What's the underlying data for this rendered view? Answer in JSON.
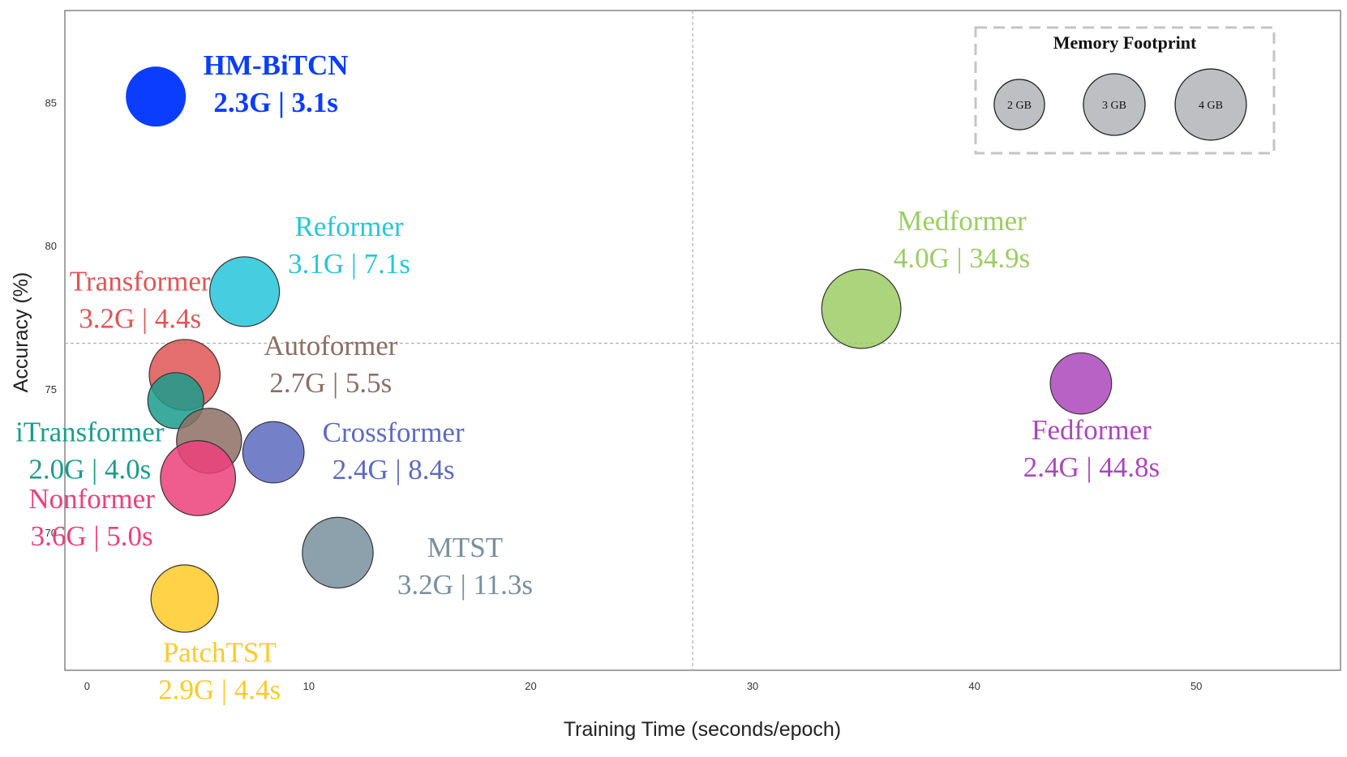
{
  "chart_data": {
    "type": "scatter",
    "title": "",
    "xlabel": "Training Time (seconds/epoch)",
    "ylabel": "Accuracy (%)",
    "xlim": [
      -1,
      56.5
    ],
    "ylim": [
      65.2,
      88.2
    ],
    "x_ticks": [
      "0",
      "10",
      "20",
      "30",
      "40",
      "50"
    ],
    "y_ticks": [
      "70",
      "75",
      "80",
      "85"
    ],
    "grid": false,
    "reference_lines": {
      "x": 27.3,
      "y": 76.6
    },
    "size_encoding": "Memory Footprint",
    "points": [
      {
        "name": "HM-BiTCN",
        "x": 3.1,
        "y": 85.2,
        "memory_gb": 2.3,
        "detail": "2.3G | 3.1s",
        "color": "#0a3dff",
        "highlight": true
      },
      {
        "name": "Reformer",
        "x": 7.1,
        "y": 78.4,
        "memory_gb": 3.1,
        "detail": "3.1G | 7.1s",
        "color": "#26c6da"
      },
      {
        "name": "Transformer",
        "x": 4.4,
        "y": 75.5,
        "memory_gb": 3.2,
        "detail": "3.2G | 4.4s",
        "color": "#e05555"
      },
      {
        "name": "iTransformer",
        "x": 4.0,
        "y": 74.6,
        "memory_gb": 2.0,
        "detail": "2.0G | 4.0s",
        "color": "#1a9c8c"
      },
      {
        "name": "Autoformer",
        "x": 5.5,
        "y": 73.2,
        "memory_gb": 2.7,
        "detail": "2.7G | 5.5s",
        "color": "#8d6e63"
      },
      {
        "name": "Nonformer",
        "x": 5.0,
        "y": 71.9,
        "memory_gb": 3.6,
        "detail": "3.6G | 5.0s",
        "color": "#ec407a"
      },
      {
        "name": "Crossformer",
        "x": 8.4,
        "y": 72.8,
        "memory_gb": 2.4,
        "detail": "2.4G | 8.4s",
        "color": "#5c6bc0"
      },
      {
        "name": "MTST",
        "x": 11.3,
        "y": 69.3,
        "memory_gb": 3.2,
        "detail": "3.2G | 11.3s",
        "color": "#78909c"
      },
      {
        "name": "PatchTST",
        "x": 4.4,
        "y": 67.7,
        "memory_gb": 2.9,
        "detail": "2.9G | 4.4s",
        "color": "#ffca28"
      },
      {
        "name": "Medformer",
        "x": 34.9,
        "y": 77.8,
        "memory_gb": 4.0,
        "detail": "4.0G | 34.9s",
        "color": "#9ccc65"
      },
      {
        "name": "Fedformer",
        "x": 44.8,
        "y": 75.2,
        "memory_gb": 2.4,
        "detail": "2.4G | 44.8s",
        "color": "#ab47bc"
      }
    ]
  },
  "legend": {
    "title": "Memory Footprint",
    "placement": "top-right",
    "sizes": [
      {
        "label": "2 GB",
        "gb": 2
      },
      {
        "label": "3 GB",
        "gb": 3
      },
      {
        "label": "4 GB",
        "gb": 4
      }
    ],
    "bubble_color": "#bdbfc2"
  }
}
